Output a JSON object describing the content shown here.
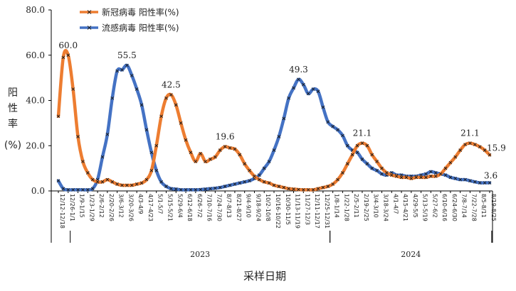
{
  "chart_data": {
    "type": "line",
    "xlabel": "采样日期",
    "ylabel": [
      "阳",
      "性",
      "率",
      "(%)"
    ],
    "ylim": [
      0,
      80
    ],
    "y_ticks": [
      "0.0",
      "20.0",
      "40.0",
      "60.0",
      "80.0"
    ],
    "legend_position": "top-left",
    "x_tick_labels": [
      "12/12-12/18",
      "12/26-1/1",
      "1/9-1/15",
      "1/23-1/29",
      "2/6-2/12",
      "2/20-2/26",
      "3/6-3/12",
      "3/20-3/26",
      "4/3-4/9",
      "4/17-4/23",
      "5/1-5/7",
      "5/15-5/21",
      "5/29-6/4",
      "6/12-6/18",
      "6/26-7/2",
      "7/10-7/16",
      "7/24-7/30",
      "8/7-8/13",
      "8/21-8/27",
      "9/4-9/10",
      "9/18-9/24",
      "10/2-10/8",
      "10/16-10/22",
      "10/30-11/5",
      "11/13-11/19",
      "11/27-12/3",
      "12/11-12/17",
      "12/25-12/31",
      "1/8-1/14",
      "1/22-1/28",
      "2/5-2/11",
      "2/19-2/25",
      "3/4-3/10",
      "3/18-3/24",
      "4/1-4/7",
      "4/15-4/21",
      "4/29-5/5",
      "5/13-5/19",
      "5/27-6/2",
      "6/10-6/16",
      "6/24-6/30",
      "7/8-7/14",
      "7/22-7/28",
      "8/5-8/11",
      "8/19-8/25"
    ],
    "years": [
      {
        "label": "2023",
        "from": 3,
        "to": 56
      },
      {
        "label": "2024",
        "from": 56,
        "to": 89
      }
    ],
    "series": [
      {
        "name": "新冠病毒  阳性率(%)",
        "color": "#ED7D31",
        "values": [
          33.0,
          59.0,
          60.0,
          45.0,
          24.0,
          13.0,
          8.0,
          5.0,
          4.0,
          4.0,
          5.0,
          4.0,
          3.0,
          2.5,
          2.5,
          2.5,
          3.0,
          3.5,
          5.0,
          9.0,
          20.0,
          33.0,
          41.0,
          42.5,
          38.0,
          30.0,
          22.5,
          17.0,
          13.0,
          16.5,
          13.0,
          14.0,
          15.0,
          18.0,
          19.6,
          19.0,
          18.5,
          16.0,
          12.0,
          9.0,
          6.5,
          5.0,
          4.0,
          3.5,
          2.5,
          2.0,
          1.5,
          1.0,
          0.8,
          0.6,
          0.5,
          0.5,
          0.5,
          1.0,
          1.5,
          2.0,
          3.0,
          5.0,
          8.0,
          12.0,
          16.0,
          20.0,
          21.1,
          20.0,
          16.0,
          13.0,
          10.0,
          8.0,
          7.0,
          6.5,
          6.0,
          6.0,
          5.5,
          6.0,
          6.0,
          6.0,
          6.5,
          6.5,
          7.5,
          10.0,
          12.5,
          15.0,
          18.0,
          20.5,
          21.1,
          20.5,
          19.5,
          18.0,
          15.9
        ],
        "labels": [
          {
            "i": 2,
            "text": "60.0"
          },
          {
            "i": 23,
            "text": "42.5"
          },
          {
            "i": 34,
            "text": "19.6"
          },
          {
            "i": 62,
            "text": "21.1"
          },
          {
            "i": 84,
            "text": "21.1"
          },
          {
            "i": 88,
            "text": "15.9"
          }
        ]
      },
      {
        "name": "流感病毒  阳性率(%)",
        "color": "#4472C4",
        "values": [
          4.5,
          1.0,
          0.5,
          0.5,
          0.5,
          0.5,
          0.5,
          1.0,
          5.0,
          15.0,
          25.0,
          41.0,
          53.0,
          53.5,
          55.5,
          51.0,
          45.0,
          38.0,
          27.0,
          17.0,
          9.0,
          4.0,
          2.0,
          1.0,
          0.8,
          0.5,
          0.5,
          0.5,
          0.5,
          0.6,
          0.8,
          1.0,
          1.2,
          1.5,
          2.0,
          2.5,
          3.0,
          3.5,
          4.0,
          4.5,
          5.5,
          7.0,
          10.0,
          13.0,
          18.0,
          24.0,
          32.0,
          41.0,
          45.5,
          49.3,
          47.0,
          43.0,
          45.0,
          44.0,
          37.0,
          30.5,
          28.5,
          27.0,
          24.5,
          20.0,
          18.0,
          17.0,
          14.0,
          12.0,
          10.0,
          9.0,
          7.5,
          7.0,
          8.0,
          7.0,
          7.0,
          6.5,
          6.5,
          6.5,
          7.0,
          7.5,
          8.5,
          8.0,
          7.5,
          7.0,
          6.0,
          5.5,
          5.0,
          5.0,
          4.5,
          4.0,
          3.6,
          3.6,
          3.6
        ],
        "labels": [
          {
            "i": 14,
            "text": "55.5"
          },
          {
            "i": 49,
            "text": "49.3"
          },
          {
            "i": 88,
            "text": "3.6"
          }
        ]
      }
    ]
  }
}
